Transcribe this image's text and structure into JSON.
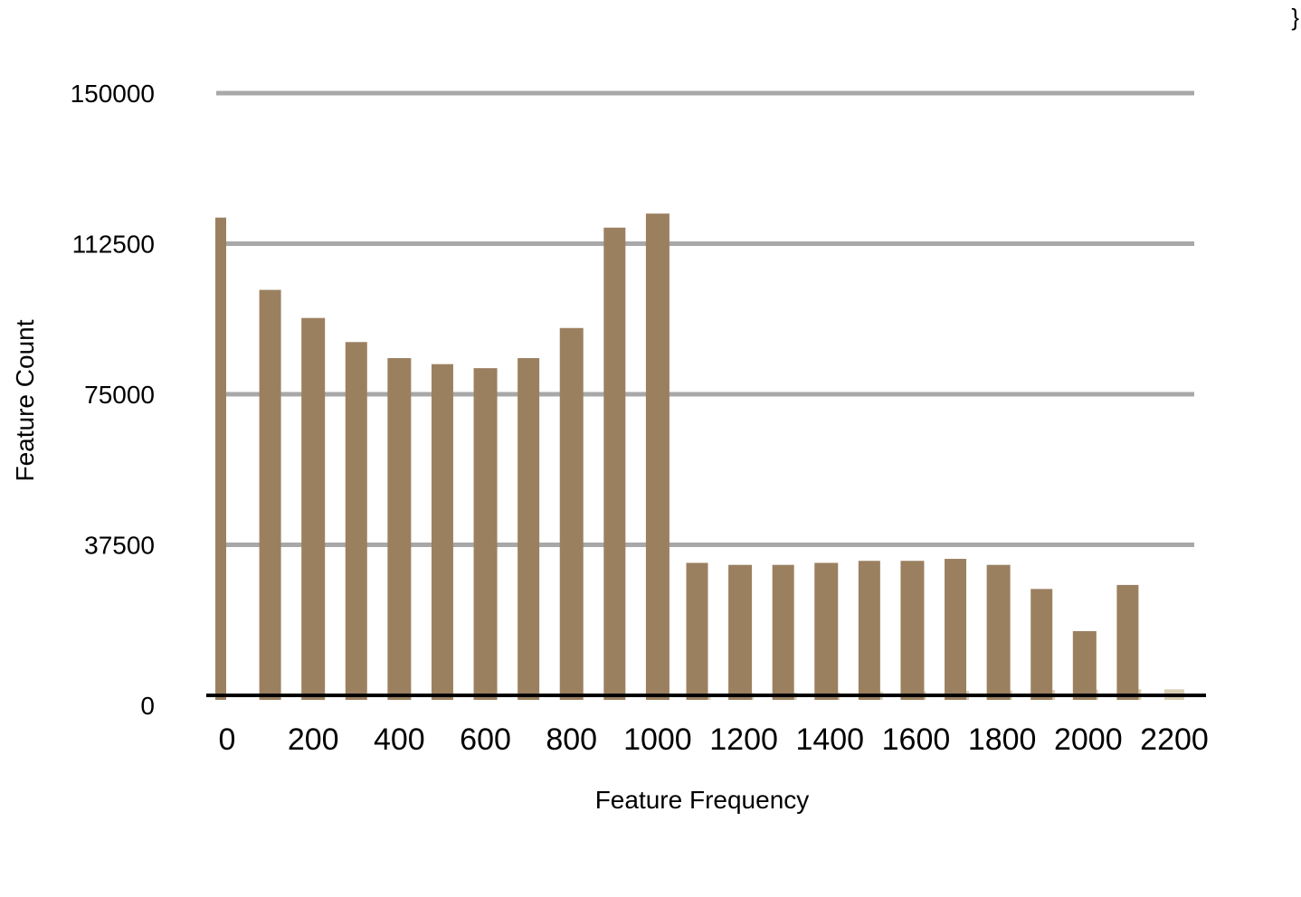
{
  "chart_data": {
    "type": "bar",
    "xlabel": "Feature Frequency",
    "ylabel": "Feature Count",
    "ylim": [
      0,
      150000
    ],
    "yticks": [
      0,
      37500,
      75000,
      112500,
      150000
    ],
    "xlim": [
      0,
      2200
    ],
    "xticks": [
      0,
      200,
      400,
      600,
      800,
      1000,
      1200,
      1400,
      1600,
      1800,
      2000,
      2200
    ],
    "grid": true,
    "legend": "none",
    "colors": {
      "bar": "#9b8060",
      "grid": "#a8a8a8",
      "axis": "#000000",
      "faint_bar": "#d8cdb0"
    },
    "series": [
      {
        "bin_start": [
          0,
          100,
          200,
          300,
          400,
          500,
          600,
          700,
          800,
          900,
          1000,
          1100,
          1200,
          1300,
          1400,
          1500,
          1600,
          1700,
          1800,
          1900,
          2000,
          2100
        ],
        "values": [
          119000,
          101000,
          94000,
          88000,
          84000,
          82500,
          81500,
          84000,
          91500,
          116500,
          120000,
          33000,
          32500,
          32500,
          33000,
          33500,
          33500,
          34000,
          32500,
          26500,
          16000,
          27500
        ]
      },
      {
        "bin_start": [
          0,
          100,
          200,
          300,
          400,
          500,
          600,
          700,
          800,
          900,
          1000,
          1100,
          1200,
          1300,
          1400,
          1500,
          1600,
          1700,
          1800,
          1900,
          2000,
          2100,
          2200
        ],
        "values": [
          0,
          0,
          0,
          0,
          0,
          0,
          0,
          300,
          300,
          400,
          400,
          500,
          600,
          700,
          800,
          900,
          1000,
          1100,
          1200,
          1300,
          1400,
          1500,
          1500
        ]
      }
    ]
  },
  "page": {
    "corner_glyph": "}"
  }
}
